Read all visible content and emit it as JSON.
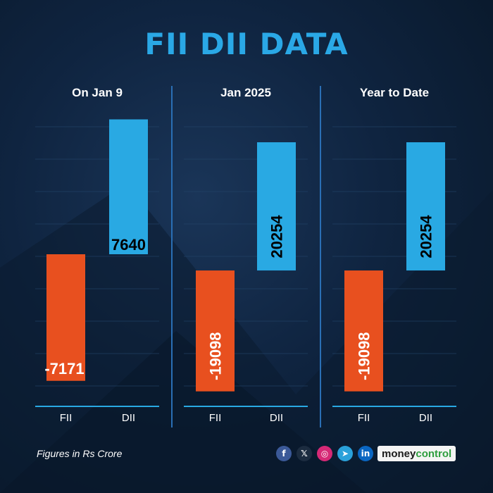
{
  "title": "FII DII DATA",
  "colors": {
    "title": "#2aa8e6",
    "fii": "#e8501f",
    "dii": "#29a9e3",
    "divider": "#2a6fb5",
    "grid": "#24466b",
    "text": "#ffffff",
    "value_text": "#000000"
  },
  "chart_data": [
    {
      "type": "bar",
      "title": "On Jan 9",
      "categories": [
        "FII",
        "DII"
      ],
      "values": [
        -7171,
        7640
      ],
      "value_labels": [
        "-7171",
        "7640"
      ],
      "ylim": [
        -7500,
        7700
      ]
    },
    {
      "type": "bar",
      "title": "Jan 2025",
      "categories": [
        "FII",
        "DII"
      ],
      "values": [
        -19098,
        20254
      ],
      "value_labels": [
        "-19098",
        "20254"
      ],
      "ylim": [
        -19800,
        20254
      ]
    },
    {
      "type": "bar",
      "title": "Year to Date",
      "categories": [
        "FII",
        "DII"
      ],
      "values": [
        -19098,
        20254
      ],
      "value_labels": [
        "-19098",
        "20254"
      ],
      "ylim": [
        -19800,
        20254
      ]
    }
  ],
  "footer": {
    "note": "Figures in Rs Crore",
    "social": [
      {
        "icon": "facebook-icon",
        "glyph": "f",
        "color": "#3b5998"
      },
      {
        "icon": "x-icon",
        "glyph": "𝕏",
        "color": "#1c2c40"
      },
      {
        "icon": "instagram-icon",
        "glyph": "◎",
        "color": "#d62976"
      },
      {
        "icon": "telegram-icon",
        "glyph": "➤",
        "color": "#2aa1da"
      },
      {
        "icon": "linkedin-icon",
        "glyph": "in",
        "color": "#0a66c2"
      }
    ],
    "brand_part1": "money",
    "brand_part2": "control",
    "brand_color1": "#1a1a1a",
    "brand_color2": "#2e9e3e"
  }
}
